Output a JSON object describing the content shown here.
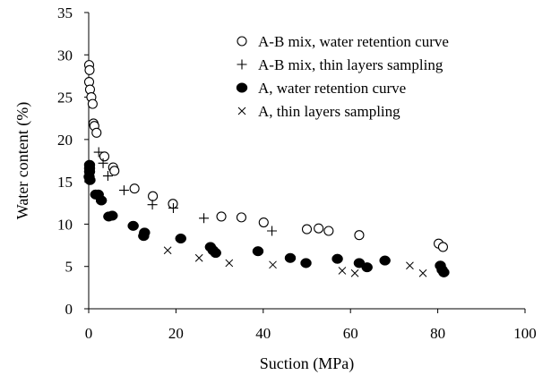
{
  "chart_data": {
    "type": "scatter",
    "title": "",
    "xlabel": "Suction (MPa)",
    "ylabel": "Water content (%)",
    "xlim": [
      0,
      100
    ],
    "ylim": [
      0,
      35
    ],
    "x_ticks": [
      "0",
      "20",
      "40",
      "60",
      "80",
      "100"
    ],
    "y_ticks": [
      "0",
      "5",
      "10",
      "15",
      "20",
      "25",
      "30",
      "35"
    ],
    "grid": false,
    "legend_position": "top-right",
    "series": [
      {
        "name": "A-B mix, water retention curve",
        "marker": "open-circle",
        "points": [
          [
            0.1,
            28.8
          ],
          [
            0.2,
            28.2
          ],
          [
            0.1,
            26.8
          ],
          [
            0.3,
            25.9
          ],
          [
            0.6,
            25.0
          ],
          [
            0.9,
            24.2
          ],
          [
            1.1,
            21.9
          ],
          [
            1.3,
            21.6
          ],
          [
            1.8,
            20.8
          ],
          [
            3.6,
            18.0
          ],
          [
            5.6,
            16.7
          ],
          [
            5.9,
            16.3
          ],
          [
            10.5,
            14.2
          ],
          [
            14.7,
            13.3
          ],
          [
            19.3,
            12.4
          ],
          [
            30.4,
            10.9
          ],
          [
            35.0,
            10.8
          ],
          [
            40.1,
            10.2
          ],
          [
            50.0,
            9.4
          ],
          [
            52.7,
            9.5
          ],
          [
            55.0,
            9.2
          ],
          [
            62.0,
            8.7
          ],
          [
            80.2,
            7.7
          ],
          [
            81.2,
            7.3
          ]
        ]
      },
      {
        "name": "A-B mix, thin layers sampling",
        "marker": "plus",
        "points": [
          [
            2.3,
            18.5
          ],
          [
            3.3,
            17.2
          ],
          [
            4.4,
            15.7
          ],
          [
            8.1,
            14.0
          ],
          [
            14.6,
            12.3
          ],
          [
            19.4,
            11.9
          ],
          [
            26.4,
            10.7
          ],
          [
            42.0,
            9.2
          ]
        ]
      },
      {
        "name": "A, water retention curve",
        "marker": "filled-circle",
        "points": [
          [
            0.2,
            17.0
          ],
          [
            0.2,
            16.6
          ],
          [
            0.2,
            16.2
          ],
          [
            0.1,
            15.6
          ],
          [
            0.3,
            15.2
          ],
          [
            1.6,
            13.5
          ],
          [
            2.2,
            13.5
          ],
          [
            2.9,
            12.8
          ],
          [
            4.6,
            10.9
          ],
          [
            5.4,
            11.0
          ],
          [
            10.2,
            9.8
          ],
          [
            12.8,
            9.0
          ],
          [
            12.6,
            8.6
          ],
          [
            21.1,
            8.3
          ],
          [
            27.9,
            7.3
          ],
          [
            28.5,
            6.9
          ],
          [
            29.1,
            6.6
          ],
          [
            38.8,
            6.8
          ],
          [
            46.2,
            6.0
          ],
          [
            49.8,
            5.4
          ],
          [
            57.0,
            5.9
          ],
          [
            62.0,
            5.4
          ],
          [
            63.8,
            4.9
          ],
          [
            67.9,
            5.7
          ],
          [
            80.6,
            5.1
          ],
          [
            81.0,
            4.6
          ],
          [
            81.4,
            4.3
          ]
        ]
      },
      {
        "name": "A, thin layers sampling",
        "marker": "x",
        "points": [
          [
            18.1,
            6.9
          ],
          [
            25.3,
            6.0
          ],
          [
            32.2,
            5.4
          ],
          [
            42.2,
            5.2
          ],
          [
            58.1,
            4.5
          ],
          [
            61.0,
            4.2
          ],
          [
            73.6,
            5.1
          ],
          [
            76.6,
            4.2
          ]
        ]
      }
    ]
  }
}
